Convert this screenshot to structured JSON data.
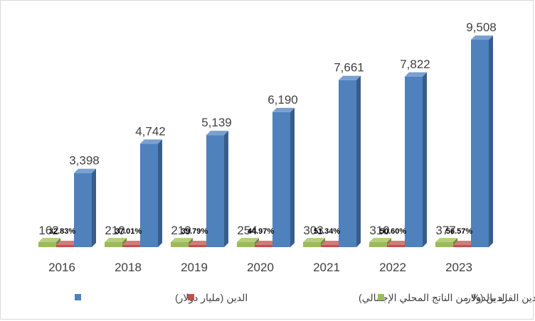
{
  "chart_data": {
    "type": "bar",
    "style": "3d-clustered-column",
    "categories": [
      "2016",
      "2018",
      "2019",
      "2020",
      "2021",
      "2022",
      "2023"
    ],
    "series": [
      {
        "name": "دين الفرد بالدولار",
        "values": [
          162,
          210,
          219,
          254,
          303,
          310,
          377
        ],
        "labels": [
          "162",
          "210",
          "219",
          "254",
          "303",
          "310",
          "377"
        ],
        "color": "#9bbb59",
        "color_dark": "#71893f",
        "color_top": "#b5cf7e"
      },
      {
        "name": "الدين (% من الناتج المحلي الإجمالي)",
        "values": [
          32.83,
          37.01,
          39.79,
          44.97,
          51.34,
          50.6,
          56.57
        ],
        "labels": [
          "32.83%",
          "37.01%",
          "39.79%",
          "44.97%",
          "51.34%",
          "50.60%",
          "56.57%"
        ],
        "color": "#c0504d",
        "color_dark": "#8c3836",
        "color_top": "#d27b78"
      },
      {
        "name": "الدين (مليار دولار)",
        "values": [
          3398,
          4742,
          5139,
          6190,
          7661,
          7822,
          9508
        ],
        "labels": [
          "3,398",
          "4,742",
          "5,139",
          "6,190",
          "7,661",
          "7,822",
          "9,508"
        ],
        "color": "#4f81bd",
        "color_dark": "#385d8a",
        "color_top": "#7a9fd0"
      }
    ],
    "grid": false,
    "legend_position": "bottom"
  }
}
